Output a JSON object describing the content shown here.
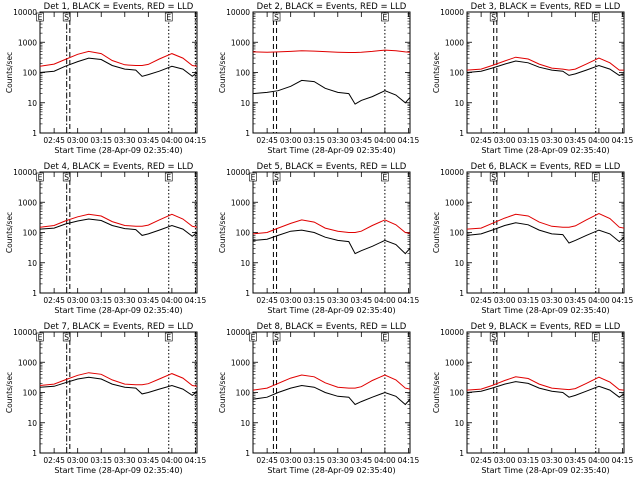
{
  "chart_data": [
    {
      "type": "line",
      "title": "Det 1, BLACK = Events, RED = LLD",
      "xlabel": "Start Time (28-Apr-09 02:35:40)",
      "ylabel": "Counts/sec",
      "yscale": "log",
      "ylim": [
        1,
        10000
      ],
      "yticks": [
        "1",
        "10",
        "100",
        "1000",
        "10000"
      ],
      "xlim": [
        "02:36",
        "04:16"
      ],
      "xticks": [
        "02:45",
        "03:00",
        "03:15",
        "03:30",
        "03:45",
        "04:00",
        "04:15"
      ],
      "x": [
        "02:36",
        "02:45",
        "02:52",
        "03:00",
        "03:07",
        "03:15",
        "03:22",
        "03:30",
        "03:37",
        "03:41",
        "03:45",
        "03:52",
        "04:00",
        "04:07",
        "04:13",
        "04:16"
      ],
      "series": [
        {
          "color": "#000000",
          "values": [
            100,
            110,
            160,
            230,
            300,
            270,
            170,
            130,
            120,
            75,
            85,
            110,
            160,
            130,
            75,
            100
          ]
        },
        {
          "color": "#e00000",
          "values": [
            160,
            190,
            270,
            400,
            500,
            420,
            250,
            180,
            170,
            170,
            185,
            280,
            420,
            300,
            170,
            160
          ]
        }
      ],
      "markers": [
        {
          "label": "E",
          "x": "02:36",
          "style": "dotted"
        },
        {
          "label": "S",
          "x": "02:53",
          "style": "dashdot"
        },
        {
          "label": "",
          "x": "02:55",
          "style": "dashed"
        },
        {
          "label": "E",
          "x": "03:58",
          "style": "dotted"
        },
        {
          "label": "",
          "x": "04:15",
          "style": "dotted"
        }
      ]
    },
    {
      "type": "line",
      "title": "Det 2, BLACK = Events, RED = LLD",
      "xlabel": "Start Time (28-Apr-09 02:35:40)",
      "ylabel": "Counts/sec",
      "yscale": "log",
      "ylim": [
        1,
        10000
      ],
      "yticks": [
        "1",
        "10",
        "100",
        "1000",
        "10000"
      ],
      "xlim": [
        "02:36",
        "04:16"
      ],
      "xticks": [
        "02:45",
        "03:00",
        "03:15",
        "03:30",
        "03:45",
        "04:00",
        "04:15"
      ],
      "x": [
        "02:36",
        "02:45",
        "02:52",
        "03:00",
        "03:07",
        "03:15",
        "03:22",
        "03:30",
        "03:37",
        "03:41",
        "03:45",
        "03:52",
        "04:00",
        "04:07",
        "04:13",
        "04:16"
      ],
      "series": [
        {
          "color": "#000000",
          "values": [
            20,
            22,
            25,
            35,
            55,
            50,
            30,
            22,
            20,
            9,
            12,
            16,
            25,
            18,
            10,
            15
          ]
        },
        {
          "color": "#e00000",
          "values": [
            480,
            470,
            480,
            500,
            520,
            510,
            490,
            470,
            460,
            460,
            470,
            500,
            550,
            520,
            480,
            470
          ]
        }
      ],
      "markers": [
        {
          "label": "",
          "x": "02:49",
          "style": "dashed"
        },
        {
          "label": "S",
          "x": "02:51",
          "style": "dashed"
        },
        {
          "label": "E",
          "x": "04:00",
          "style": "dotted"
        }
      ]
    },
    {
      "type": "line",
      "title": "Det 3, BLACK = Events, RED = LLD",
      "xlabel": "Start Time (28-Apr-09 02:35:40)",
      "ylabel": "Counts/sec",
      "yscale": "log",
      "ylim": [
        1,
        10000
      ],
      "yticks": [
        "1",
        "10",
        "100",
        "1000",
        "10000"
      ],
      "xlim": [
        "02:36",
        "04:16"
      ],
      "xticks": [
        "02:45",
        "03:00",
        "03:15",
        "03:30",
        "03:45",
        "04:00",
        "04:15"
      ],
      "x": [
        "02:36",
        "02:45",
        "02:52",
        "03:00",
        "03:07",
        "03:15",
        "03:22",
        "03:30",
        "03:37",
        "03:41",
        "03:45",
        "03:52",
        "04:00",
        "04:07",
        "04:13",
        "04:16"
      ],
      "series": [
        {
          "color": "#000000",
          "values": [
            100,
            110,
            140,
            190,
            240,
            210,
            150,
            120,
            110,
            80,
            90,
            120,
            170,
            130,
            80,
            90
          ]
        },
        {
          "color": "#e00000",
          "values": [
            120,
            130,
            170,
            240,
            320,
            280,
            190,
            140,
            130,
            120,
            130,
            190,
            300,
            210,
            120,
            120
          ]
        }
      ],
      "markers": [
        {
          "label": "S",
          "x": "02:53",
          "style": "dashed"
        },
        {
          "label": "",
          "x": "02:55",
          "style": "dashed"
        },
        {
          "label": "E",
          "x": "03:58",
          "style": "dotted"
        }
      ]
    },
    {
      "type": "line",
      "title": "Det 4, BLACK = Events, RED = LLD",
      "xlabel": "Start Time (28-Apr-09 02:35:40)",
      "ylabel": "Counts/sec",
      "yscale": "log",
      "ylim": [
        1,
        10000
      ],
      "yticks": [
        "1",
        "10",
        "100",
        "1000",
        "10000"
      ],
      "xlim": [
        "02:36",
        "04:16"
      ],
      "xticks": [
        "02:45",
        "03:00",
        "03:15",
        "03:30",
        "03:45",
        "04:00",
        "04:15"
      ],
      "x": [
        "02:36",
        "02:45",
        "02:52",
        "03:00",
        "03:07",
        "03:15",
        "03:22",
        "03:30",
        "03:37",
        "03:41",
        "03:45",
        "03:52",
        "04:00",
        "04:07",
        "04:13",
        "04:16"
      ],
      "series": [
        {
          "color": "#000000",
          "values": [
            130,
            140,
            190,
            240,
            280,
            250,
            170,
            135,
            125,
            80,
            90,
            120,
            170,
            130,
            75,
            100
          ]
        },
        {
          "color": "#e00000",
          "values": [
            150,
            170,
            240,
            330,
            400,
            350,
            230,
            170,
            160,
            160,
            175,
            260,
            400,
            280,
            160,
            150
          ]
        }
      ],
      "markers": [
        {
          "label": "E",
          "x": "02:36",
          "style": "dotted"
        },
        {
          "label": "S",
          "x": "02:53",
          "style": "dashdot"
        },
        {
          "label": "",
          "x": "02:55",
          "style": "dashed"
        },
        {
          "label": "E",
          "x": "03:58",
          "style": "dotted"
        },
        {
          "label": "",
          "x": "04:15",
          "style": "dotted"
        }
      ]
    },
    {
      "type": "line",
      "title": "Det 5, BLACK = Events, RED = LLD",
      "xlabel": "Start Time (28-Apr-09 02:35:40)",
      "ylabel": "Counts/sec",
      "yscale": "log",
      "ylim": [
        1,
        10000
      ],
      "yticks": [
        "1",
        "10",
        "100",
        "1000",
        "10000"
      ],
      "xlim": [
        "02:36",
        "04:16"
      ],
      "xticks": [
        "02:45",
        "03:00",
        "03:15",
        "03:30",
        "03:45",
        "04:00",
        "04:15"
      ],
      "x": [
        "02:36",
        "02:45",
        "02:52",
        "03:00",
        "03:07",
        "03:15",
        "03:22",
        "03:30",
        "03:37",
        "03:41",
        "03:45",
        "03:52",
        "04:00",
        "04:07",
        "04:13",
        "04:16"
      ],
      "series": [
        {
          "color": "#000000",
          "values": [
            55,
            60,
            80,
            110,
            120,
            100,
            70,
            55,
            50,
            20,
            25,
            35,
            55,
            40,
            20,
            30
          ]
        },
        {
          "color": "#e00000",
          "values": [
            90,
            100,
            140,
            200,
            260,
            220,
            140,
            110,
            100,
            100,
            110,
            170,
            260,
            180,
            100,
            95
          ]
        }
      ],
      "markers": [
        {
          "label": "E",
          "x": "02:36",
          "style": "dotted"
        },
        {
          "label": "",
          "x": "02:49",
          "style": "dashed"
        },
        {
          "label": "S",
          "x": "02:51",
          "style": "dashed"
        },
        {
          "label": "E",
          "x": "04:00",
          "style": "dotted"
        }
      ]
    },
    {
      "type": "line",
      "title": "Det 6, BLACK = Events, RED = LLD",
      "xlabel": "Start Time (28-Apr-09 02:35:40)",
      "ylabel": "Counts/sec",
      "yscale": "log",
      "ylim": [
        1,
        10000
      ],
      "yticks": [
        "1",
        "10",
        "100",
        "1000",
        "10000"
      ],
      "xlim": [
        "02:36",
        "04:16"
      ],
      "xticks": [
        "02:45",
        "03:00",
        "03:15",
        "03:30",
        "03:45",
        "04:00",
        "04:15"
      ],
      "x": [
        "02:36",
        "02:45",
        "02:52",
        "03:00",
        "03:07",
        "03:15",
        "03:22",
        "03:30",
        "03:37",
        "03:41",
        "03:45",
        "03:52",
        "04:00",
        "04:07",
        "04:13",
        "04:16"
      ],
      "series": [
        {
          "color": "#000000",
          "values": [
            80,
            90,
            120,
            170,
            210,
            180,
            120,
            90,
            85,
            45,
            55,
            80,
            120,
            90,
            50,
            70
          ]
        },
        {
          "color": "#e00000",
          "values": [
            130,
            140,
            200,
            300,
            400,
            350,
            220,
            160,
            150,
            150,
            165,
            260,
            420,
            290,
            150,
            140
          ]
        }
      ],
      "markers": [
        {
          "label": "S",
          "x": "02:53",
          "style": "dashed"
        },
        {
          "label": "",
          "x": "02:55",
          "style": "dashed"
        },
        {
          "label": "E",
          "x": "03:58",
          "style": "dotted"
        }
      ]
    },
    {
      "type": "line",
      "title": "Det 7, BLACK = Events, RED = LLD",
      "xlabel": "Start Time (28-Apr-09 02:35:40)",
      "ylabel": "Counts/sec",
      "yscale": "log",
      "ylim": [
        1,
        10000
      ],
      "yticks": [
        "1",
        "10",
        "100",
        "1000",
        "10000"
      ],
      "xlim": [
        "02:36",
        "04:16"
      ],
      "xticks": [
        "02:45",
        "03:00",
        "03:15",
        "03:30",
        "03:45",
        "04:00",
        "04:15"
      ],
      "x": [
        "02:36",
        "02:45",
        "02:52",
        "03:00",
        "03:07",
        "03:15",
        "03:22",
        "03:30",
        "03:37",
        "03:41",
        "03:45",
        "03:52",
        "04:00",
        "04:07",
        "04:13",
        "04:16"
      ],
      "series": [
        {
          "color": "#000000",
          "values": [
            150,
            160,
            210,
            280,
            320,
            280,
            190,
            150,
            140,
            90,
            100,
            130,
            170,
            130,
            80,
            110
          ]
        },
        {
          "color": "#e00000",
          "values": [
            170,
            190,
            260,
            370,
            450,
            400,
            260,
            190,
            180,
            180,
            195,
            280,
            420,
            300,
            170,
            160
          ]
        }
      ],
      "markers": [
        {
          "label": "E",
          "x": "02:36",
          "style": "dotted"
        },
        {
          "label": "S",
          "x": "02:53",
          "style": "dashdot"
        },
        {
          "label": "",
          "x": "02:55",
          "style": "dashed"
        },
        {
          "label": "E",
          "x": "03:58",
          "style": "dotted"
        },
        {
          "label": "",
          "x": "04:15",
          "style": "dotted"
        }
      ]
    },
    {
      "type": "line",
      "title": "Det 8, BLACK = Events, RED = LLD",
      "xlabel": "Start Time (28-Apr-09 02:35:40)",
      "ylabel": "Counts/sec",
      "yscale": "log",
      "ylim": [
        1,
        10000
      ],
      "yticks": [
        "1",
        "10",
        "100",
        "1000",
        "10000"
      ],
      "xlim": [
        "02:36",
        "04:16"
      ],
      "xticks": [
        "02:45",
        "03:00",
        "03:15",
        "03:30",
        "03:45",
        "04:00",
        "04:15"
      ],
      "x": [
        "02:36",
        "02:45",
        "02:52",
        "03:00",
        "03:07",
        "03:15",
        "03:22",
        "03:30",
        "03:37",
        "03:41",
        "03:45",
        "03:52",
        "04:00",
        "04:07",
        "04:13",
        "04:16"
      ],
      "series": [
        {
          "color": "#000000",
          "values": [
            60,
            70,
            100,
            140,
            170,
            150,
            100,
            75,
            70,
            40,
            50,
            70,
            100,
            75,
            40,
            60
          ]
        },
        {
          "color": "#e00000",
          "values": [
            120,
            140,
            200,
            300,
            380,
            330,
            210,
            150,
            140,
            140,
            155,
            250,
            380,
            260,
            140,
            130
          ]
        }
      ],
      "markers": [
        {
          "label": "E",
          "x": "02:36",
          "style": "dotted"
        },
        {
          "label": "",
          "x": "02:49",
          "style": "dashed"
        },
        {
          "label": "S",
          "x": "02:51",
          "style": "dashed"
        },
        {
          "label": "E",
          "x": "04:00",
          "style": "dotted"
        }
      ]
    },
    {
      "type": "line",
      "title": "Det 9, BLACK = Events, RED = LLD",
      "xlabel": "Start Time (28-Apr-09 02:35:40)",
      "ylabel": "Counts/sec",
      "yscale": "log",
      "ylim": [
        1,
        10000
      ],
      "yticks": [
        "1",
        "10",
        "100",
        "1000",
        "10000"
      ],
      "xlim": [
        "02:36",
        "04:16"
      ],
      "xticks": [
        "02:45",
        "03:00",
        "03:15",
        "03:30",
        "03:45",
        "04:00",
        "04:15"
      ],
      "x": [
        "02:36",
        "02:45",
        "02:52",
        "03:00",
        "03:07",
        "03:15",
        "03:22",
        "03:30",
        "03:37",
        "03:41",
        "03:45",
        "03:52",
        "04:00",
        "04:07",
        "04:13",
        "04:16"
      ],
      "series": [
        {
          "color": "#000000",
          "values": [
            100,
            110,
            140,
            190,
            230,
            200,
            140,
            110,
            100,
            70,
            80,
            110,
            160,
            120,
            70,
            90
          ]
        },
        {
          "color": "#e00000",
          "values": [
            120,
            130,
            170,
            250,
            330,
            290,
            190,
            140,
            130,
            125,
            135,
            200,
            320,
            220,
            125,
            120
          ]
        }
      ],
      "markers": [
        {
          "label": "S",
          "x": "02:53",
          "style": "dashed"
        },
        {
          "label": "",
          "x": "02:55",
          "style": "dashed"
        },
        {
          "label": "E",
          "x": "03:58",
          "style": "dotted"
        }
      ]
    }
  ]
}
